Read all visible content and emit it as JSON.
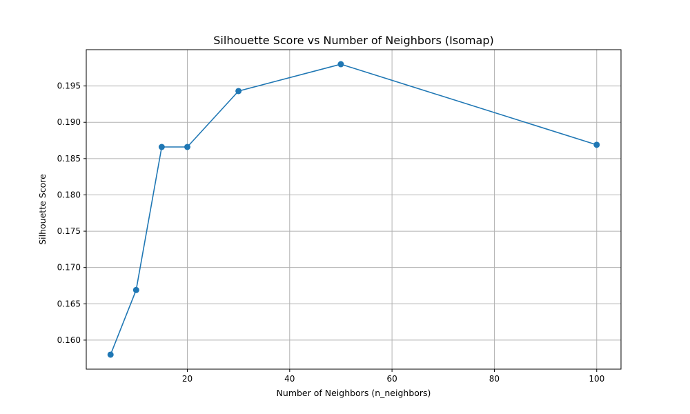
{
  "chart_data": {
    "type": "line",
    "title": "Silhouette Score vs Number of Neighbors (Isomap)",
    "xlabel": "Number of Neighbors (n_neighbors)",
    "ylabel": "Silhouette Score",
    "x": [
      5,
      10,
      15,
      20,
      30,
      50,
      100
    ],
    "series": [
      {
        "values": [
          0.158,
          0.1669,
          0.1866,
          0.1866,
          0.1943,
          0.198,
          0.1869
        ],
        "color": "#1f77b4",
        "marker": "circle"
      }
    ],
    "xlim": [
      0.25,
      104.75
    ],
    "ylim": [
      0.156,
      0.2
    ],
    "xticks": [
      20,
      40,
      60,
      80,
      100
    ],
    "xtick_labels": [
      "20",
      "40",
      "60",
      "80",
      "100"
    ],
    "yticks": [
      0.16,
      0.165,
      0.17,
      0.175,
      0.18,
      0.185,
      0.19,
      0.195
    ],
    "ytick_labels": [
      "0.160",
      "0.165",
      "0.170",
      "0.175",
      "0.180",
      "0.185",
      "0.190",
      "0.195"
    ],
    "grid": true,
    "grid_color": "#b0b0b0",
    "legend": false
  }
}
